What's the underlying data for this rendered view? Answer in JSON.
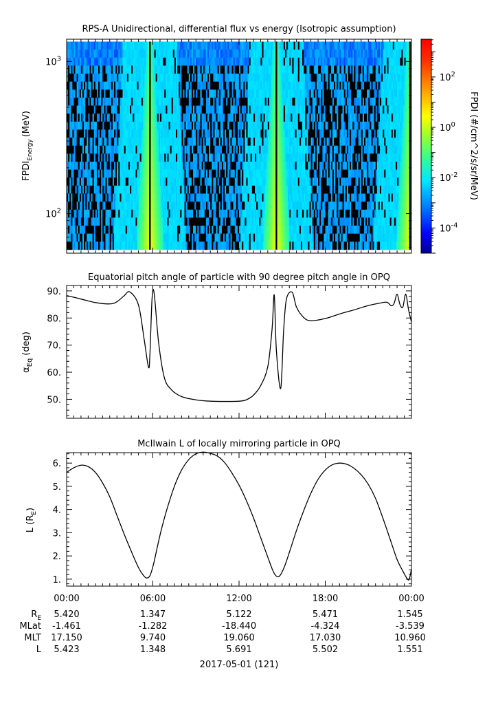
{
  "chart_data": [
    {
      "type": "heatmap",
      "title": "RPS-A Unidirectional, differential flux vs energy (Isotropic assumption)",
      "ylabel_main": "FPDI",
      "ylabel_sub": "Energy",
      "ylabel_unit": "(MeV)",
      "yscale": "log",
      "ylim": [
        55,
        1400
      ],
      "yticks": [
        {
          "value": 100,
          "base": "10",
          "exp": "2"
        },
        {
          "value": 1000,
          "base": "10",
          "exp": "3"
        }
      ],
      "colorbar": {
        "label": "FPDI (#/cm^2/s/sr/MeV)",
        "scale": "log",
        "range_exp": [
          -5,
          3.5
        ],
        "ticks": [
          {
            "exp": -4,
            "base": "10",
            "text": "-4"
          },
          {
            "exp": -2,
            "base": "10",
            "text": "-2"
          },
          {
            "exp": 0,
            "base": "10",
            "text": "0"
          },
          {
            "exp": 2,
            "base": "10",
            "text": "2"
          }
        ]
      },
      "x_hours_range": [
        0,
        24
      ],
      "energy_band_mev": [
        58,
        1350
      ],
      "bright_passes_hours": [
        5.8,
        14.6,
        23.9
      ],
      "description_levels": {
        "background_exp": -2.8,
        "peak_exp": 0.4
      }
    },
    {
      "type": "line",
      "title": "Equatorial pitch angle of particle with 90 degree pitch angle in OPQ",
      "ylabel": "α",
      "ylabel_sub": "Eq",
      "ylabel_unit": "(deg)",
      "ylim": [
        43,
        92
      ],
      "yticks": [
        "50.",
        "60.",
        "70.",
        "80.",
        "90."
      ],
      "x_hours": [
        0,
        1,
        2,
        3,
        3.5,
        4,
        4.4,
        5,
        5.4,
        5.7,
        5.8,
        5.95,
        6.1,
        6.4,
        6.8,
        7.3,
        8,
        9,
        10,
        11,
        12,
        12.5,
        13,
        13.5,
        14,
        14.3,
        14.45,
        14.6,
        14.9,
        15.1,
        15.3,
        15.7,
        16,
        16.5,
        17,
        18,
        19,
        20,
        21,
        21.8,
        22.3,
        22.6,
        22.8,
        23,
        23.2,
        23.4,
        23.6,
        23.8,
        24
      ],
      "y_deg": [
        88.3,
        87,
        85.7,
        85.2,
        86,
        88.2,
        89.6,
        84.8,
        72,
        61.8,
        67,
        87.5,
        88.8,
        71,
        58,
        53.5,
        51,
        49.8,
        49.3,
        49.2,
        49.3,
        49.8,
        51.5,
        55,
        62,
        76,
        88.5,
        68,
        54,
        75,
        87,
        89.5,
        84,
        80.2,
        79,
        79.8,
        81.5,
        83,
        84.6,
        85.5,
        85.8,
        84.5,
        85.5,
        88.8,
        85,
        84,
        88.8,
        83,
        78.5
      ]
    },
    {
      "type": "line",
      "title": "McIlwain L of locally mirroring particle in OPQ",
      "ylabel": "L (R",
      "ylabel_sub": "E",
      "ylabel_unit": ")",
      "ylim": [
        0.7,
        6.45
      ],
      "yticks": [
        "1.",
        "2.",
        "3.",
        "4.",
        "5.",
        "6."
      ],
      "x_hours": [
        0,
        0.5,
        1,
        1.5,
        2,
        2.5,
        3,
        3.5,
        4,
        4.5,
        5,
        5.3,
        5.55,
        5.8,
        6.05,
        6.3,
        6.6,
        7,
        7.5,
        8,
        8.5,
        9,
        9.5,
        10,
        10.5,
        11,
        11.5,
        12,
        12.5,
        13,
        13.5,
        14,
        14.3,
        14.5,
        14.7,
        14.9,
        15.2,
        15.5,
        16,
        16.5,
        17,
        17.5,
        18,
        18.5,
        19,
        19.5,
        20,
        20.5,
        21,
        21.5,
        22,
        22.5,
        23,
        23.4,
        23.7,
        23.85,
        24
      ],
      "y_L": [
        5.6,
        5.8,
        5.91,
        5.85,
        5.6,
        5.15,
        4.55,
        3.75,
        2.95,
        2.2,
        1.5,
        1.2,
        1.05,
        1.15,
        1.65,
        2.35,
        3.15,
        4.05,
        5.0,
        5.7,
        6.15,
        6.4,
        6.47,
        6.42,
        6.3,
        6.02,
        5.58,
        5.05,
        4.4,
        3.65,
        2.8,
        1.95,
        1.45,
        1.2,
        1.1,
        1.2,
        1.6,
        2.15,
        3.1,
        3.95,
        4.7,
        5.3,
        5.7,
        5.93,
        6.0,
        5.95,
        5.78,
        5.5,
        5.08,
        4.48,
        3.65,
        2.75,
        1.85,
        1.35,
        1.02,
        1.0,
        1.45
      ]
    }
  ],
  "x_axis": {
    "tick_labels": [
      "00:00",
      "06:00",
      "12:00",
      "18:00",
      "00:00"
    ],
    "date_label": "2017-05-01 (121)"
  },
  "ephemeris": {
    "rows": [
      {
        "label": "R",
        "label_sub": "E",
        "values": [
          "5.420",
          "1.347",
          "5.122",
          "5.471",
          "1.545"
        ]
      },
      {
        "label": "MLat",
        "label_sub": "",
        "values": [
          "-1.461",
          "-1.282",
          "-18.440",
          "-4.324",
          "-3.539"
        ]
      },
      {
        "label": "MLT",
        "label_sub": "",
        "values": [
          "17.150",
          "9.740",
          "19.060",
          "17.030",
          "10.960"
        ]
      },
      {
        "label": "L",
        "label_sub": "",
        "values": [
          "5.423",
          "1.348",
          "5.691",
          "5.502",
          "1.551"
        ]
      }
    ]
  }
}
